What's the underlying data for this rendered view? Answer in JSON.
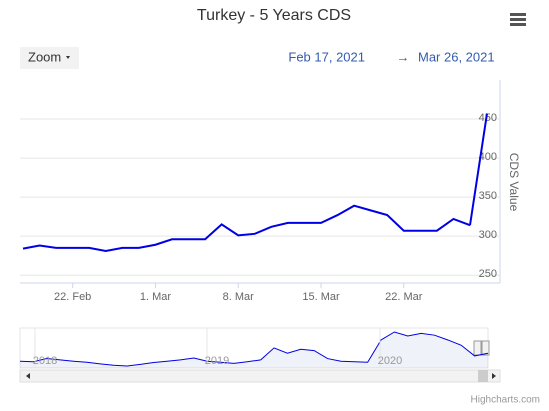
{
  "chart_data": {
    "type": "line",
    "title": "Turkey - 5 Years CDS",
    "zoom_button": "Zoom",
    "range_from": "Feb 17, 2021",
    "range_arrow": "→",
    "range_to": "Mar 26, 2021",
    "y_axis_title": "CDS Value",
    "x": [
      "2021-02-17",
      "2021-02-18",
      "2021-02-19",
      "2021-02-22",
      "2021-02-23",
      "2021-02-24",
      "2021-02-25",
      "2021-02-26",
      "2021-03-01",
      "2021-03-02",
      "2021-03-03",
      "2021-03-04",
      "2021-03-05",
      "2021-03-08",
      "2021-03-09",
      "2021-03-10",
      "2021-03-11",
      "2021-03-12",
      "2021-03-15",
      "2021-03-16",
      "2021-03-17",
      "2021-03-18",
      "2021-03-19",
      "2021-03-22",
      "2021-03-23",
      "2021-03-24",
      "2021-03-25",
      "2021-03-26"
    ],
    "series": [
      {
        "name": "CDS",
        "color": "#0000e6",
        "values": [
          284,
          288,
          285,
          285,
          285,
          281,
          285,
          285,
          289,
          296,
          296,
          296,
          315,
          301,
          303,
          312,
          317,
          317,
          317,
          327,
          339,
          333,
          327,
          307,
          307,
          307,
          322,
          314
        ]
      }
    ],
    "extra_points": {
      "x": [
        "2021-03-26"
      ],
      "values": [
        457
      ]
    },
    "ylim": [
      240,
      500
    ],
    "yticks": [
      250,
      300,
      350,
      400,
      450
    ],
    "grid": true,
    "xticks": [
      {
        "value": "2021-02-22",
        "label": "22. Feb"
      },
      {
        "value": "2021-03-01",
        "label": "1. Mar"
      },
      {
        "value": "2021-03-08",
        "label": "8. Mar"
      },
      {
        "value": "2021-03-15",
        "label": "15. Mar"
      },
      {
        "value": "2021-03-22",
        "label": "22. Mar"
      }
    ],
    "navigator": {
      "labels": [
        "2018",
        "2019",
        "2020"
      ],
      "values": [
        300,
        298,
        310,
        305,
        300,
        296,
        290,
        285,
        282,
        288,
        295,
        300,
        305,
        312,
        300,
        296,
        292,
        298,
        305,
        350,
        330,
        345,
        340,
        310,
        300,
        298,
        296,
        380,
        410,
        395,
        405,
        398,
        380,
        360,
        320,
        330
      ]
    },
    "credits": "Highcharts.com"
  }
}
